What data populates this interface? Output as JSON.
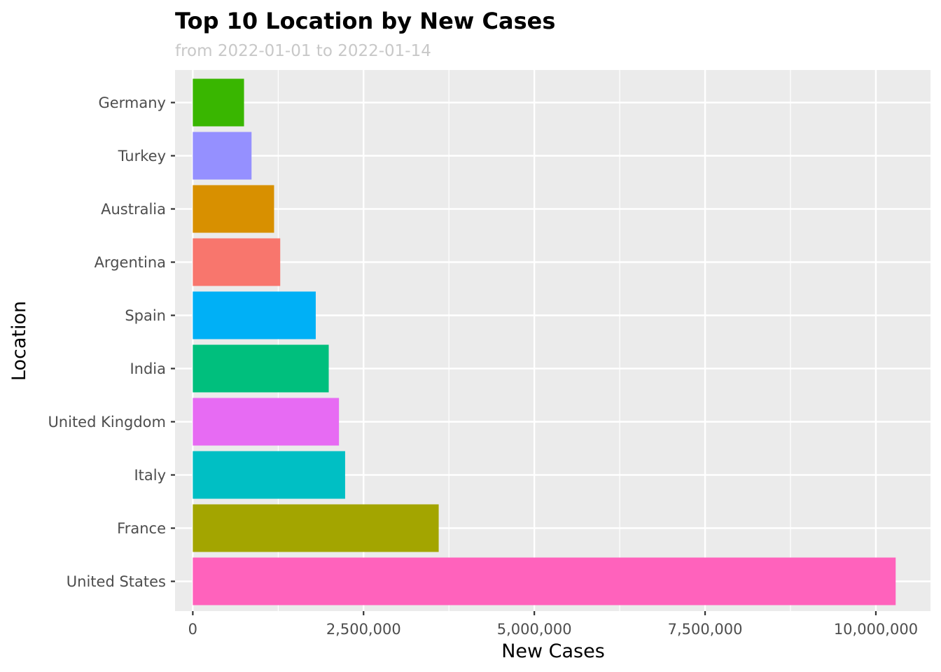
{
  "chart_data": {
    "type": "bar",
    "orientation": "horizontal",
    "title": "Top 10 Location by New Cases",
    "subtitle": "from 2022-01-01 to 2022-01-14",
    "xlabel": "New Cases",
    "ylabel": "Location",
    "xlim": [
      -260000,
      10800000
    ],
    "grid": true,
    "legend": "none",
    "x_ticks": [
      {
        "value": 0,
        "label": "0"
      },
      {
        "value": 2500000,
        "label": "2,500,000"
      },
      {
        "value": 5000000,
        "label": "5,000,000"
      },
      {
        "value": 7500000,
        "label": "7,500,000"
      },
      {
        "value": 10000000,
        "label": "10,000,000"
      }
    ],
    "categories": [
      "Germany",
      "Turkey",
      "Australia",
      "Argentina",
      "Spain",
      "India",
      "United Kingdom",
      "Italy",
      "France",
      "United States"
    ],
    "values": [
      750000,
      860000,
      1190000,
      1280000,
      1800000,
      1990000,
      2140000,
      2230000,
      3600000,
      10290000
    ],
    "colors": [
      "#39B600",
      "#9590FF",
      "#D89000",
      "#F8766D",
      "#00B0F6",
      "#00BF7D",
      "#E76BF3",
      "#00BFC4",
      "#A3A500",
      "#FF62BC"
    ]
  }
}
